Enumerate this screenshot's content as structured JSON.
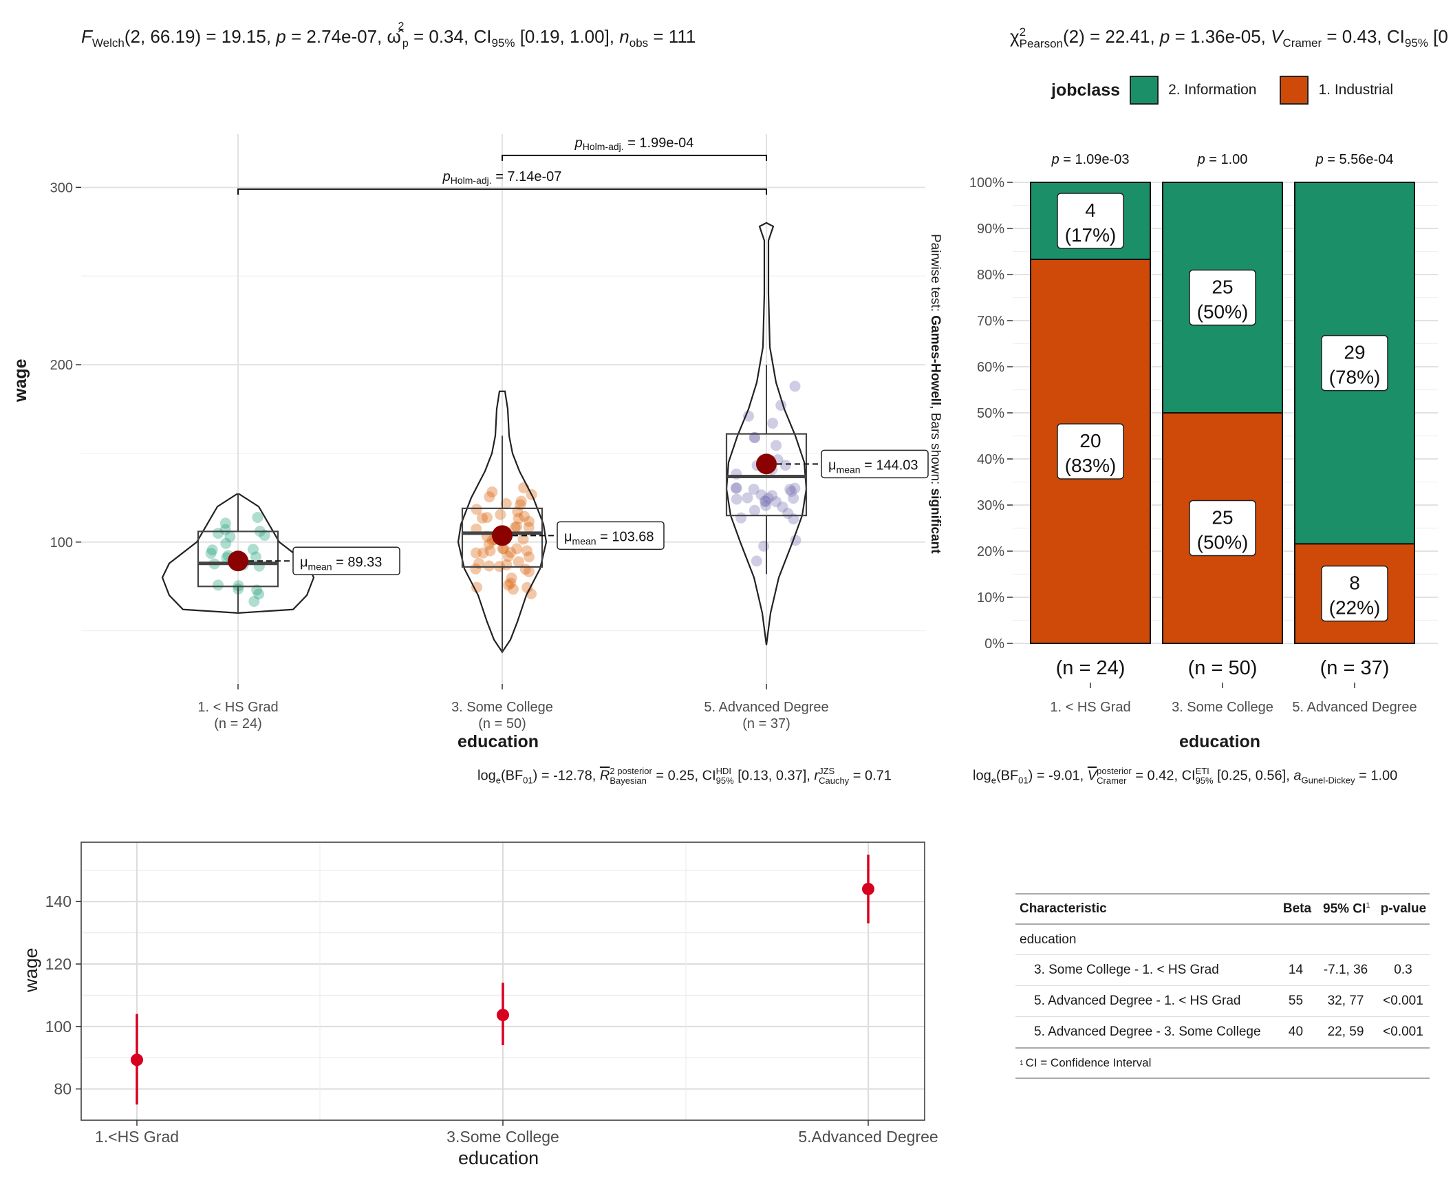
{
  "chart_data": [
    {
      "type": "violin-box-scatter",
      "title_stats": {
        "f_prefix": "F",
        "f_sub": "Welch",
        "df": "(2, 66.19)",
        "f_value": "= 19.15,",
        "p_label": "p",
        "p_value": "= 2.74e-07,",
        "omega_sup": "2",
        "omega_sub": "p",
        "omega_value": "= 0.34,",
        "ci_label": "CI",
        "ci_sub": "95%",
        "ci_value": "[0.19, 1.00],",
        "n_label": "n",
        "n_sub": "obs",
        "n_value": "= 111"
      },
      "xlabel": "education",
      "ylabel": "wage",
      "ylim": [
        20,
        330
      ],
      "yticks": [
        100,
        200,
        300
      ],
      "groups": [
        {
          "name": "1. < HS Grad",
          "n_label": "(n = 24)",
          "color": "#1b9e77",
          "mean": 89.33,
          "mean_label": "= 89.33",
          "median": 88,
          "q1": 75,
          "q3": 106,
          "whisker_low": 60,
          "whisker_high": 127
        },
        {
          "name": "3. Some College",
          "n_label": "(n = 50)",
          "color": "#d95f02",
          "mean": 103.68,
          "mean_label": "= 103.68",
          "median": 105,
          "q1": 86,
          "q3": 119,
          "whisker_low": 38,
          "whisker_high": 160
        },
        {
          "name": "5. Advanced Degree",
          "n_label": "(n = 37)",
          "color": "#7570b3",
          "mean": 144.03,
          "mean_label": "= 144.03",
          "median": 137,
          "q1": 115,
          "q3": 161,
          "whisker_low": 82,
          "whisker_high": 200
        }
      ],
      "mean_label_prefix": "μ",
      "mean_label_sub": "mean",
      "pairwise": [
        {
          "from": 0,
          "to": 2,
          "y": 299,
          "p_label": "p",
          "p_sub": "Holm-adj.",
          "value": "= 7.14e-07"
        },
        {
          "from": 1,
          "to": 2,
          "y": 318,
          "p_label": "p",
          "p_sub": "Holm-adj.",
          "value": "= 1.99e-04"
        }
      ],
      "right_caption": {
        "prefix": "Pairwise test: ",
        "test": "Games-Howell",
        "mid": ", Bars shown: ",
        "shown": "significant"
      },
      "bayes_caption": {
        "log": "log",
        "log_sub": "e",
        "bf": "(BF",
        "bf_sub": "01",
        "bf_value": ") = -12.78,",
        "r_label": "R",
        "r_sup": "2 posterior",
        "r_sub": "Bayesian",
        "r_value": "= 0.25,",
        "ci_label": "CI",
        "ci_sup": "HDI",
        "ci_sub": "95%",
        "ci_value": "[0.13, 0.37],",
        "r2_label": "r",
        "r2_sup": "JZS",
        "r2_sub": "Cauchy",
        "r2_value": "= 0.71"
      }
    },
    {
      "type": "bar",
      "stacked": true,
      "title_stats": {
        "chi": "χ",
        "chi_sup": "2",
        "chi_sub": "Pearson",
        "df": "(2) = 22.41,",
        "p_label": "p",
        "p_value": "= 1.36e-05,",
        "v_label": "V",
        "v_sub": "Cramer",
        "v_value": "= 0.43,",
        "ci_label": "CI",
        "ci_sub": "95%",
        "ci_value": "[0"
      },
      "legend_title": "jobclass",
      "legend_position": "top",
      "series": [
        {
          "name": "2. Information",
          "color": "#1b8f68",
          "counts": [
            4,
            25,
            29
          ],
          "labels": [
            "(17%)",
            "(50%)",
            "(78%)"
          ],
          "percent": [
            16.7,
            50,
            78.4
          ]
        },
        {
          "name": "1. Industrial",
          "color": "#cf4a09",
          "counts": [
            20,
            25,
            8
          ],
          "labels": [
            "(83%)",
            "(50%)",
            "(22%)"
          ],
          "percent": [
            83.3,
            50,
            21.6
          ]
        }
      ],
      "categories": [
        "1. < HS Grad",
        "3. Some College",
        "5. Advanced Degree"
      ],
      "top_p_labels": [
        {
          "p": "p",
          "value": "= 1.09e-03"
        },
        {
          "p": "p",
          "value": "= 1.00"
        },
        {
          "p": "p",
          "value": "= 5.56e-04"
        }
      ],
      "n_labels": [
        "(n = 24)",
        "(n = 50)",
        "(n = 37)"
      ],
      "yticks": [
        "0%",
        "10%",
        "20%",
        "30%",
        "40%",
        "50%",
        "60%",
        "70%",
        "80%",
        "90%",
        "100%"
      ],
      "ylim": [
        0,
        100
      ],
      "xlabel": "education",
      "bayes_caption": {
        "log": "log",
        "log_sub": "e",
        "bf": "(BF",
        "bf_sub": "01",
        "bf_value": ") = -9.01,",
        "v_label": "V",
        "v_sup": "posterior",
        "v_sub": "Cramer",
        "v_value": "= 0.42,",
        "ci_label": "CI",
        "ci_sup": "ETI",
        "ci_sub": "95%",
        "ci_value": "[0.25, 0.56],",
        "a_label": "a",
        "a_sub": "Gunel-Dickey",
        "a_value": "= 1.00"
      }
    },
    {
      "type": "scatter",
      "xlabel": "education",
      "ylabel": "wage",
      "categories": [
        "1.<HS Grad",
        "3.Some College",
        "5.Advanced Degree"
      ],
      "points": [
        {
          "x": "1.<HS Grad",
          "y": 89.33,
          "low": 75,
          "high": 104
        },
        {
          "x": "3.Some College",
          "y": 103.68,
          "low": 94,
          "high": 114
        },
        {
          "x": "5.Advanced Degree",
          "y": 144.03,
          "low": 133,
          "high": 155
        }
      ],
      "yticks": [
        80,
        100,
        120,
        140
      ],
      "ylim": [
        70,
        159
      ],
      "color": "#d7001f"
    },
    {
      "type": "table",
      "headers": [
        "Characteristic",
        "Beta",
        "95% CI",
        "p-value"
      ],
      "ci_footnote_mark": "1",
      "group_label": "education",
      "rows": [
        [
          "3. Some College - 1. < HS Grad",
          "14",
          "-7.1, 36",
          "0.3"
        ],
        [
          "5. Advanced Degree - 1. < HS Grad",
          "55",
          "32, 77",
          "<0.001"
        ],
        [
          "5. Advanced Degree - 3. Some College",
          "40",
          "22, 59",
          "<0.001"
        ]
      ],
      "footnote": "CI = Confidence Interval"
    }
  ]
}
